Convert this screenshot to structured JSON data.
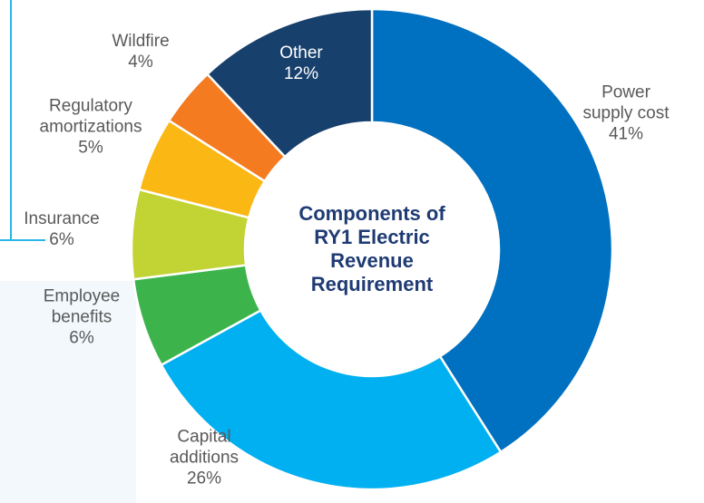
{
  "chart_data": {
    "type": "donut",
    "title": "Components of RY1 Electric Revenue Requirement",
    "categories": [
      "Power supply cost",
      "Capital additions",
      "Employee benefits",
      "Insurance",
      "Regulatory amortizations",
      "Wildfire",
      "Other"
    ],
    "values": [
      41,
      26,
      6,
      6,
      5,
      4,
      12
    ],
    "value_labels": [
      "41%",
      "26%",
      "6%",
      "6%",
      "5%",
      "4%",
      "12%"
    ],
    "colors": [
      "#0070c0",
      "#00b0f0",
      "#3cb44b",
      "#c2d334",
      "#fbb714",
      "#f47b20",
      "#17406d"
    ]
  }
}
